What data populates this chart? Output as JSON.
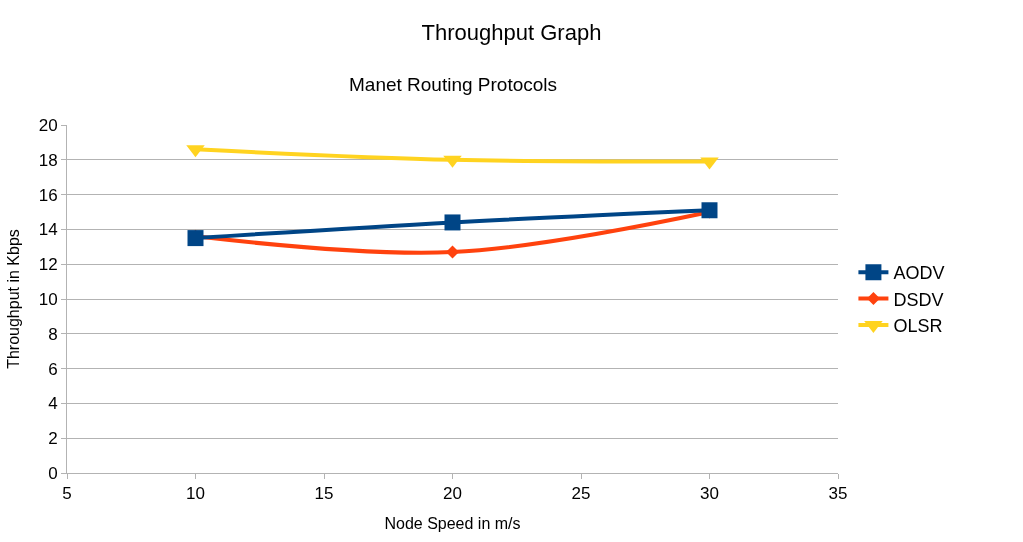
{
  "chart_data": {
    "type": "line",
    "title": "Throughput Graph",
    "subtitle": "Manet Routing Protocols",
    "xlabel": "Node Speed in m/s",
    "ylabel": "Throughput in Kbps",
    "x": [
      10,
      20,
      30
    ],
    "series": [
      {
        "name": "AODV",
        "color": "#004586",
        "values": [
          13.5,
          14.4,
          15.1
        ],
        "marker": "square"
      },
      {
        "name": "DSDV",
        "color": "#ff420e",
        "values": [
          13.6,
          12.7,
          15.0
        ],
        "marker": "diamond"
      },
      {
        "name": "OLSR",
        "color": "#ffd320",
        "values": [
          18.6,
          18.0,
          17.9
        ],
        "marker": "triangle"
      }
    ],
    "xlim": [
      5,
      35
    ],
    "xticks": [
      5,
      10,
      15,
      20,
      25,
      30,
      35
    ],
    "ylim": [
      0,
      20
    ],
    "yticks": [
      0,
      2,
      4,
      6,
      8,
      10,
      12,
      14,
      16,
      18,
      20
    ],
    "grid": "y",
    "legend": "right",
    "line_style": "solid"
  }
}
